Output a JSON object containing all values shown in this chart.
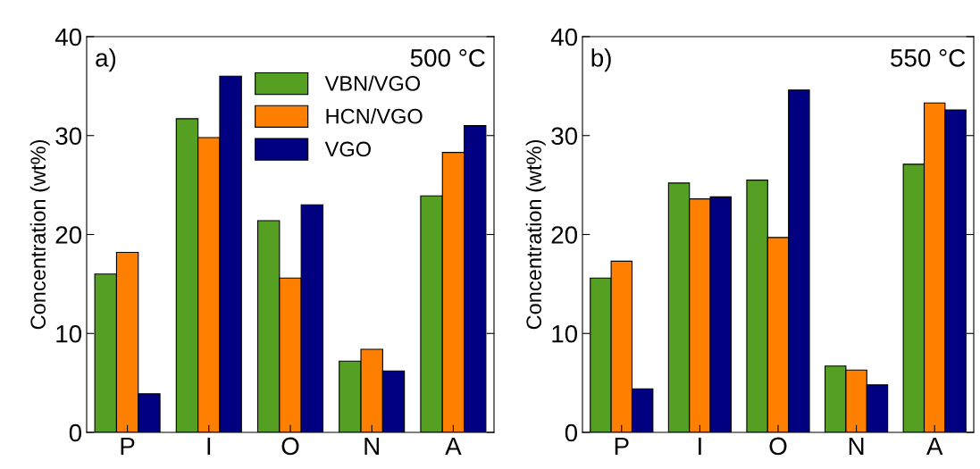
{
  "chart_data": [
    {
      "type": "bar",
      "ylabel": "Concentration (wt%)",
      "categories": [
        "P",
        "I",
        "O",
        "N",
        "A"
      ],
      "ylim": [
        0,
        40
      ],
      "yticks": [
        0,
        10,
        20,
        30,
        40
      ],
      "legend": "top",
      "grid": false,
      "annotations": [
        "a)",
        "500 °C"
      ],
      "series": [
        {
          "name": "VBN/VGO",
          "color": "#55a022",
          "values": [
            16.0,
            31.7,
            21.4,
            7.2,
            23.9
          ]
        },
        {
          "name": "HCN/VGO",
          "color": "#ff8000",
          "values": [
            18.2,
            29.8,
            15.6,
            8.4,
            28.3
          ]
        },
        {
          "name": "VGO",
          "color": "#000080",
          "values": [
            3.9,
            36.0,
            23.0,
            6.2,
            31.0
          ]
        }
      ]
    },
    {
      "type": "bar",
      "ylabel": "Concentration (wt%)",
      "categories": [
        "P",
        "I",
        "O",
        "N",
        "A"
      ],
      "ylim": [
        0,
        40
      ],
      "yticks": [
        0,
        10,
        20,
        30,
        40
      ],
      "legend": false,
      "grid": false,
      "annotations": [
        "b)",
        "550 °C"
      ],
      "series": [
        {
          "color": "#55a022",
          "values": [
            15.6,
            25.2,
            25.5,
            6.7,
            27.1
          ]
        },
        {
          "color": "#ff8000",
          "values": [
            17.3,
            23.6,
            19.7,
            6.3,
            33.3
          ]
        },
        {
          "color": "#000080",
          "values": [
            4.4,
            23.8,
            34.6,
            4.8,
            32.6
          ]
        }
      ]
    }
  ]
}
